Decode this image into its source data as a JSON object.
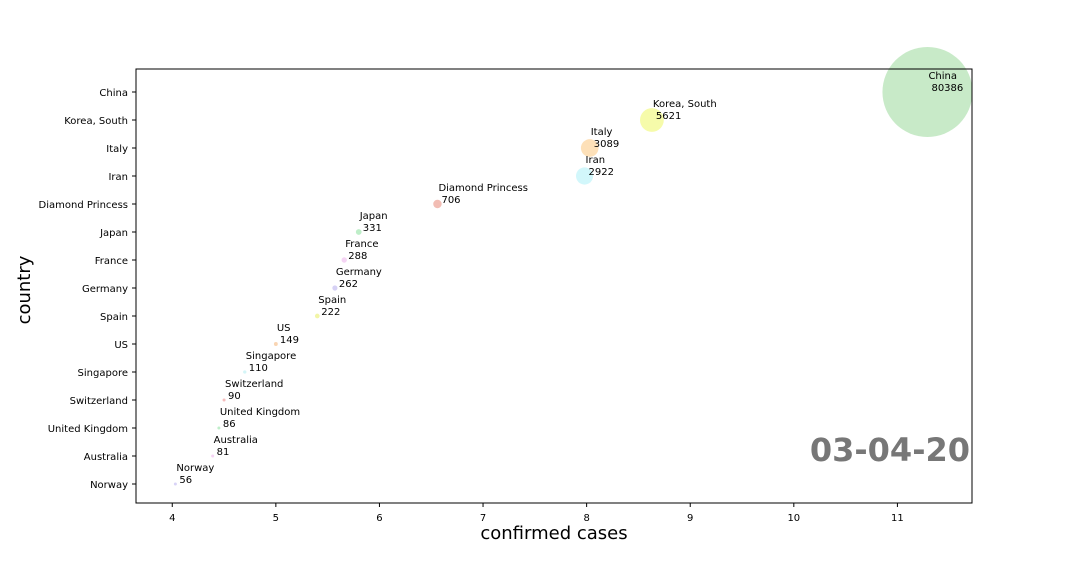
{
  "chart_data": {
    "type": "scatter",
    "xlabel": "confirmed cases",
    "ylabel": "country",
    "xlim": [
      3.65,
      11.72
    ],
    "xticks": [
      4,
      5,
      6,
      7,
      8,
      9,
      10,
      11
    ],
    "date": "03-04-20",
    "grid": false,
    "categories": [
      "China",
      "Korea, South",
      "Italy",
      "Iran",
      "Diamond Princess",
      "Japan",
      "France",
      "Germany",
      "Spain",
      "US",
      "Singapore",
      "Switzerland",
      "United Kingdom",
      "Australia",
      "Norway"
    ],
    "points": [
      {
        "country": "China",
        "cases": "80386",
        "x": 11.29,
        "color": "#b5e3b6"
      },
      {
        "country": "Korea, South",
        "cases": "5621",
        "x": 8.63,
        "color": "#f3fa8e"
      },
      {
        "country": "Italy",
        "cases": "3089",
        "x": 8.03,
        "color": "#fcd6a0"
      },
      {
        "country": "Iran",
        "cases": "2922",
        "x": 7.98,
        "color": "#c3f4fa"
      },
      {
        "country": "Diamond Princess",
        "cases": "706",
        "x": 6.56,
        "color": "#eda79b"
      },
      {
        "country": "Japan",
        "cases": "331",
        "x": 5.8,
        "color": "#a8e8b6"
      },
      {
        "country": "France",
        "cases": "288",
        "x": 5.66,
        "color": "#f2c6f0"
      },
      {
        "country": "Germany",
        "cases": "262",
        "x": 5.57,
        "color": "#c8c2f2"
      },
      {
        "country": "Spain",
        "cases": "222",
        "x": 5.4,
        "color": "#eef28a"
      },
      {
        "country": "US",
        "cases": "149",
        "x": 5.0,
        "color": "#f7c79a"
      },
      {
        "country": "Singapore",
        "cases": "110",
        "x": 4.7,
        "color": "#c6f1f4"
      },
      {
        "country": "Switzerland",
        "cases": "90",
        "x": 4.5,
        "color": "#f2a6a6"
      },
      {
        "country": "United Kingdom",
        "cases": "86",
        "x": 4.45,
        "color": "#a9e8b8"
      },
      {
        "country": "Australia",
        "cases": "81",
        "x": 4.39,
        "color": "#f1c4f0"
      },
      {
        "country": "Norway",
        "cases": "56",
        "x": 4.03,
        "color": "#cbc4f4"
      }
    ]
  }
}
